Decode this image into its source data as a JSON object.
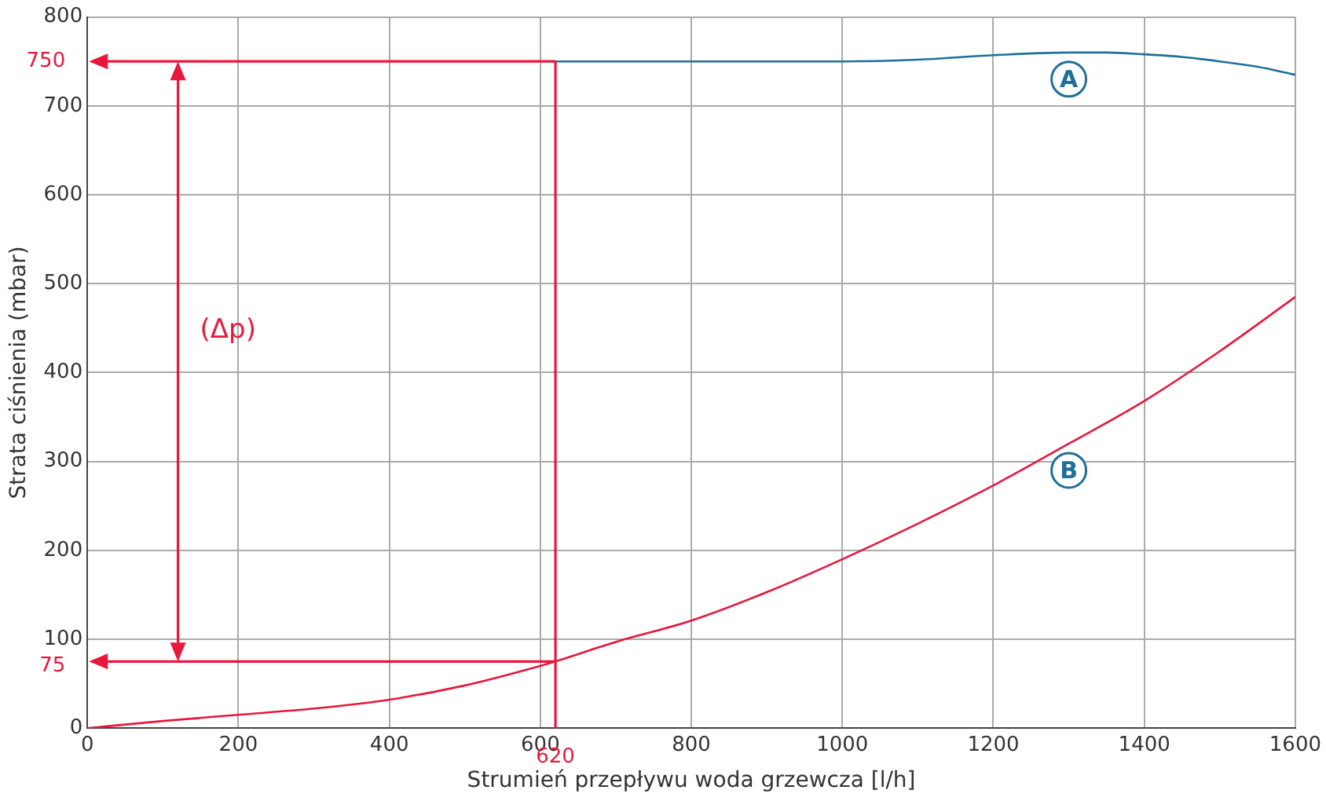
{
  "chart_data": {
    "type": "line",
    "xlabel": "Strumień przepływu woda grzewcza [l/h]",
    "ylabel": "Strata ciśnienia (mbar)",
    "xlim": [
      0,
      1600
    ],
    "xticks": [
      0,
      200,
      400,
      600,
      800,
      1000,
      1200,
      1400,
      1600
    ],
    "ylim": [
      0,
      800
    ],
    "yticks": [
      0,
      100,
      200,
      300,
      400,
      500,
      600,
      700,
      800
    ],
    "grid": true,
    "legend": false,
    "marker": "none",
    "line_style": "solid",
    "series": [
      {
        "color": "#1f6f9a",
        "x": [
          620,
          700,
          800,
          900,
          1000,
          1100,
          1200,
          1300,
          1350,
          1400,
          1450,
          1500,
          1550,
          1600
        ],
        "values": [
          750,
          750,
          750,
          750,
          750,
          752,
          757,
          760,
          760,
          758,
          755,
          750,
          744,
          735
        ]
      },
      {
        "color": "#e8173c",
        "x": [
          0,
          100,
          200,
          300,
          400,
          500,
          600,
          620,
          700,
          800,
          900,
          1000,
          1100,
          1200,
          1300,
          1400,
          1500,
          1600
        ],
        "values": [
          0,
          8,
          15,
          22,
          32,
          48,
          70,
          75,
          97,
          121,
          153,
          190,
          230,
          273,
          320,
          368,
          424,
          485
        ]
      }
    ],
    "ref_lines": [
      {
        "axis": "y",
        "value": 750,
        "label": "750",
        "color": "#e8173c"
      },
      {
        "axis": "y",
        "value": 75,
        "label": "75",
        "color": "#e8173c"
      },
      {
        "axis": "x",
        "value": 620,
        "label": "620",
        "color": "#e8173c"
      }
    ],
    "annotations": [
      "(Δp)",
      {
        "text": "A",
        "x": 1300,
        "y": 730
      },
      {
        "text": "B",
        "x": 1300,
        "y": 290
      }
    ]
  }
}
